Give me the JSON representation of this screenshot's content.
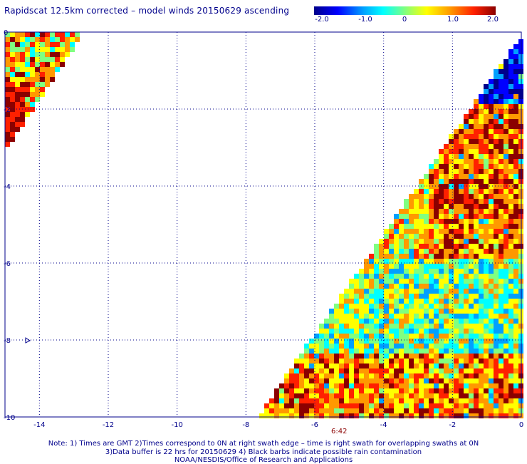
{
  "title": "Rapidscat 12.5km corrected – model winds 20150629 ascending",
  "colorbar": {
    "ticks": [
      "-2.0",
      "-1.0",
      "0",
      "1.0",
      "2.0"
    ],
    "values": [
      -2.0,
      -1.0,
      0,
      1.0,
      2.0
    ],
    "range": [
      -2.0,
      2.0
    ],
    "colors": [
      "#00008b",
      "#0000ff",
      "#00a0ff",
      "#00ffff",
      "#80ff80",
      "#ffff00",
      "#ff9900",
      "#ff2000",
      "#8b0000"
    ]
  },
  "chart_data": {
    "type": "heatmap",
    "xlim": [
      -15,
      0
    ],
    "ylim": [
      -10,
      0
    ],
    "x_ticks": [
      "-14",
      "-12",
      "-10",
      "-8",
      "-6",
      "-4",
      "-2",
      "0"
    ],
    "x_tick_values": [
      -14,
      -12,
      -10,
      -8,
      -6,
      -4,
      -2,
      0
    ],
    "y_ticks": [
      "0",
      "-2",
      "-4",
      "-6",
      "-8",
      "-10"
    ],
    "y_tick_values": [
      0,
      -2,
      -4,
      -6,
      -8,
      -10
    ],
    "grid": "dotted",
    "swaths": [
      {
        "name": "left swath",
        "region": "upper-left",
        "dominant": "mixed green / orange / red"
      },
      {
        "name": "right swath",
        "region": "lower-right triangle",
        "dominant": "orange-red upper, cyan-green middle, orange-red lower, blue patch at top"
      }
    ],
    "annotations": [
      {
        "text": "6:42",
        "x": -5.8,
        "y": -10
      }
    ]
  },
  "notes": {
    "line1": "Note: 1) Times are GMT 2)Times correspond to 0N at right swath edge – time is right swath for overlapping swaths at 0N",
    "line2": "3)Data buffer is 22 hrs for 20150629 4) Black barbs indicate possible rain contamination",
    "line3": "NOAA/NESDIS/Office of Research and Applications"
  },
  "time_label": "6:42"
}
